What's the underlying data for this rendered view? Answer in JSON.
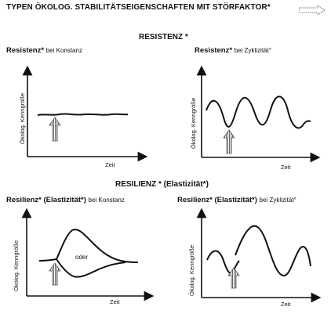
{
  "title": "TYPEN ÖKOLOG. STABILITÄTSEIGENSCHAFTEN MIT STÖRFAKTOR*",
  "sections": {
    "resistenz": "RESISTENZ *",
    "resilienz": "RESILIENZ * (Elastizität*)"
  },
  "panels": [
    {
      "title": "Resistenz*",
      "subtitle": "bei Konstanz",
      "ylabel": "Ökolog. Kenngröße",
      "xlabel": "Zeit"
    },
    {
      "title": "Resistenz*",
      "subtitle": "bei Zyklizität°",
      "ylabel": "Ökolog. Kenngröße",
      "xlabel": "Zeit"
    },
    {
      "title": "Resilienz* (Elastizität*)",
      "subtitle": "bei Konstanz",
      "ylabel": "Ökolog. Kenngröße",
      "xlabel": "Zeit",
      "annotation": "oder"
    },
    {
      "title": "Resilienz* (Elastizität*)",
      "subtitle": "bei Zyklizität°",
      "ylabel": "Ökolog. Kenngröße",
      "xlabel": "Zeit"
    }
  ],
  "colors": {
    "ink": "#111111",
    "arrow_fill": "#ffffff",
    "arrow_stripe": "#555555"
  },
  "icons": [
    "disturbance-arrow-icon",
    "title-arrow-icon"
  ]
}
